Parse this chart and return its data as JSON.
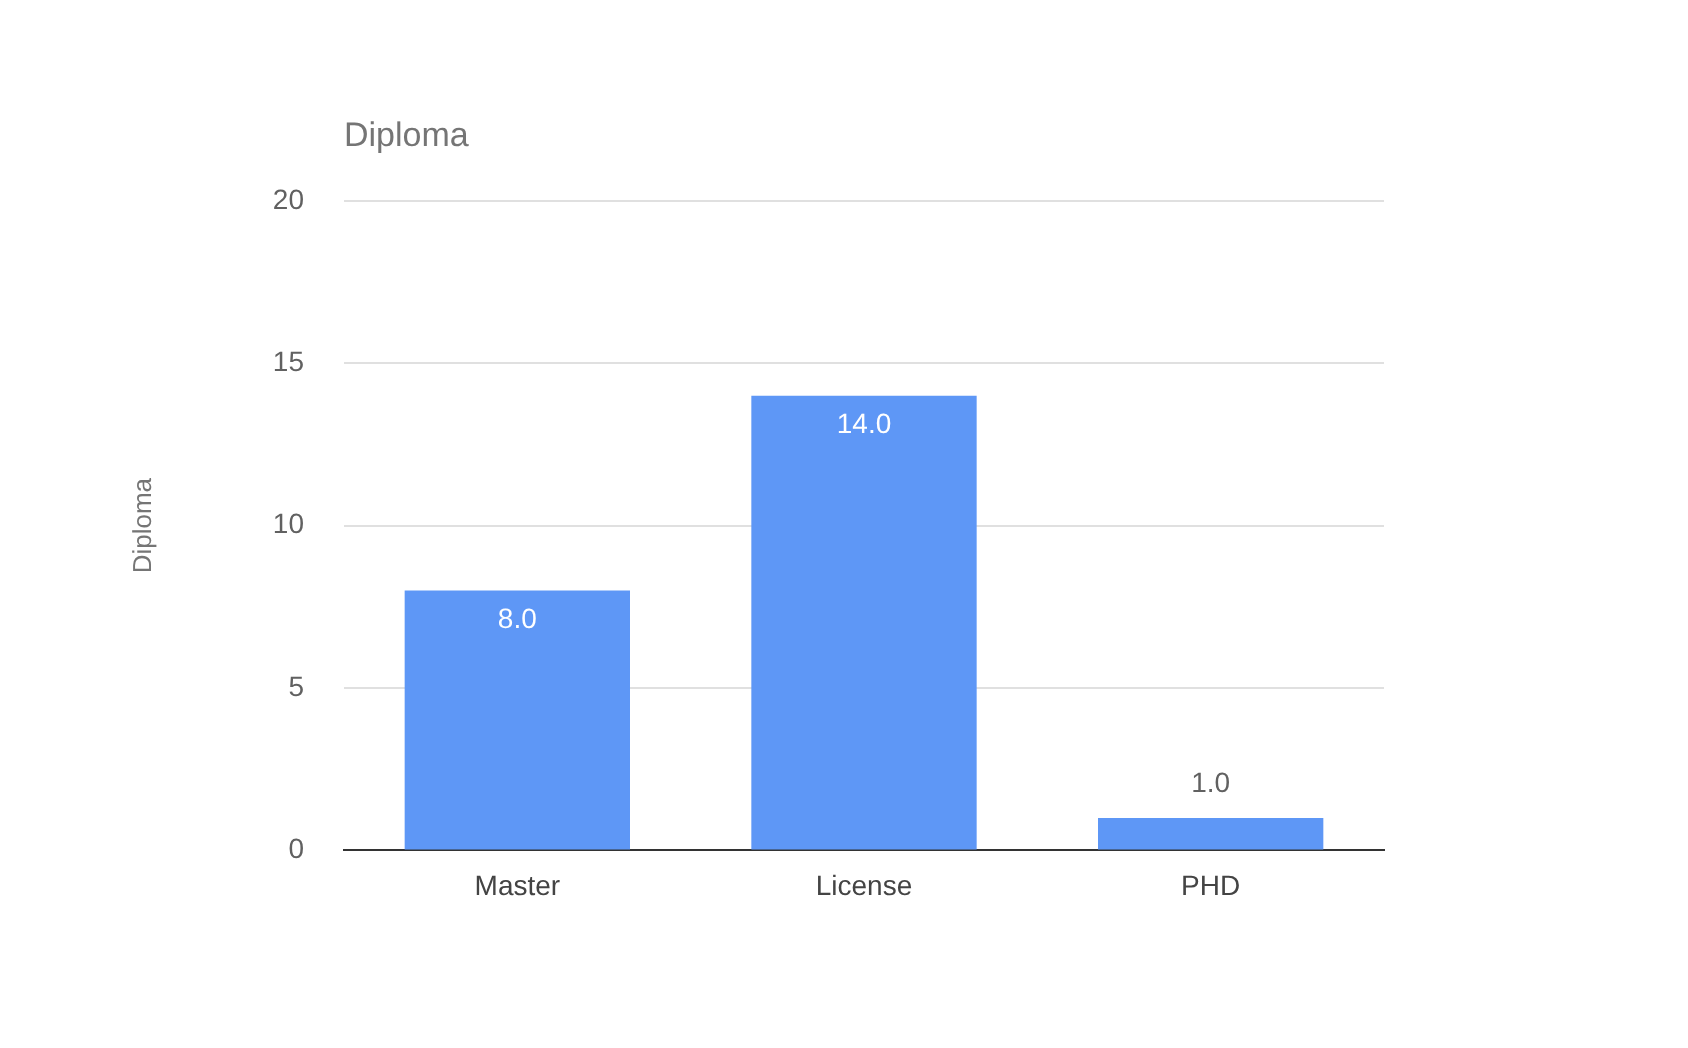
{
  "chart_data": {
    "type": "bar",
    "title": "Diploma",
    "ylabel": "Diploma",
    "categories": [
      "Master",
      "License",
      "PHD"
    ],
    "values": [
      8,
      14,
      1
    ],
    "color": "#5e97f6",
    "value_labels": [
      "8.0",
      "14.0",
      "1.0"
    ],
    "ylim": [
      0,
      20
    ],
    "yticks": [
      0,
      5,
      10,
      15,
      20
    ],
    "grid": "y",
    "legend": false
  }
}
